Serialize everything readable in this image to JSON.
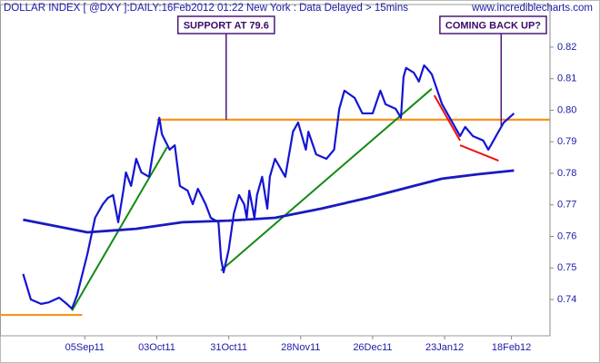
{
  "chart_data": {
    "type": "line",
    "title": "DOLLAR INDEX [ @DXY ]:DAILY:16Feb2012 01:22 New York  : Data Delayed > 15mins",
    "source": "www.incrediblecharts.com",
    "xlim": [
      "2011-08-03",
      "2012-03-04"
    ],
    "xticks": [
      {
        "value": "2011-09-05",
        "label": "05Sep11"
      },
      {
        "value": "2011-10-03",
        "label": "03Oct11"
      },
      {
        "value": "2011-10-31",
        "label": "31Oct11"
      },
      {
        "value": "2011-11-28",
        "label": "28Nov11"
      },
      {
        "value": "2011-12-26",
        "label": "26Dec11"
      },
      {
        "value": "2012-01-23",
        "label": "23Jan12"
      },
      {
        "value": "2012-02-18",
        "label": "18Feb12"
      }
    ],
    "ylim": [
      0.7285,
      0.8335
    ],
    "yticks": [
      0.74,
      0.75,
      0.76,
      0.77,
      0.78,
      0.79,
      {
        "value": 0.8,
        "label": "0.80"
      },
      0.81,
      0.82
    ],
    "grid": false,
    "series": [
      {
        "color": "#1414d4",
        "width": 2.2,
        "x": [
          "2011-08-12",
          "2011-08-15",
          "2011-08-19",
          "2011-08-22",
          "2011-08-26",
          "2011-08-29",
          "2011-08-31",
          "2011-09-02",
          "2011-09-06",
          "2011-09-09",
          "2011-09-12",
          "2011-09-14",
          "2011-09-16",
          "2011-09-18",
          "2011-09-20",
          "2011-09-21",
          "2011-09-23",
          "2011-09-25",
          "2011-09-27",
          "2011-09-30",
          "2011-10-02",
          "2011-10-04",
          "2011-10-05",
          "2011-10-08",
          "2011-10-10",
          "2011-10-12",
          "2011-10-15",
          "2011-10-17",
          "2011-10-19",
          "2011-10-22",
          "2011-10-24",
          "2011-10-27",
          "2011-10-28",
          "2011-10-29",
          "2011-10-31",
          "2011-11-02",
          "2011-11-04",
          "2011-11-06",
          "2011-11-07",
          "2011-11-08",
          "2011-11-10",
          "2011-11-11",
          "2011-11-13",
          "2011-11-15",
          "2011-11-16",
          "2011-11-18",
          "2011-11-22",
          "2011-11-25",
          "2011-11-27",
          "2011-11-30",
          "2011-12-01",
          "2011-12-04",
          "2011-12-08",
          "2011-12-11",
          "2011-12-13",
          "2011-12-15",
          "2011-12-19",
          "2011-12-22",
          "2011-12-26",
          "2011-12-29",
          "2011-12-31",
          "2012-01-04",
          "2012-01-06",
          "2012-01-07",
          "2012-01-08",
          "2012-01-11",
          "2012-01-13",
          "2012-01-15",
          "2012-01-16",
          "2012-01-18",
          "2012-01-22",
          "2012-01-25",
          "2012-01-29",
          "2012-01-31",
          "2012-02-03",
          "2012-02-07",
          "2012-02-09",
          "2012-02-10",
          "2012-02-12",
          "2012-02-15",
          "2012-02-19"
        ],
        "values": [
          0.7481,
          0.74,
          0.7386,
          0.7391,
          0.7406,
          0.7386,
          0.7371,
          0.7414,
          0.7544,
          0.7659,
          0.7702,
          0.7722,
          0.7731,
          0.7645,
          0.7745,
          0.7803,
          0.776,
          0.7846,
          0.7803,
          0.7789,
          0.7889,
          0.7976,
          0.7924,
          0.7875,
          0.7889,
          0.776,
          0.7745,
          0.7702,
          0.7751,
          0.7702,
          0.7659,
          0.7645,
          0.7529,
          0.7486,
          0.7558,
          0.7673,
          0.7731,
          0.7702,
          0.7659,
          0.7745,
          0.7659,
          0.7731,
          0.7789,
          0.7688,
          0.7789,
          0.7846,
          0.7789,
          0.7932,
          0.7961,
          0.7875,
          0.7932,
          0.786,
          0.7846,
          0.7875,
          0.8004,
          0.8062,
          0.8039,
          0.799,
          0.799,
          0.8062,
          0.8019,
          0.8004,
          0.7976,
          0.8105,
          0.8134,
          0.8119,
          0.8091,
          0.8142,
          0.8134,
          0.8114,
          0.8019,
          0.7976,
          0.7918,
          0.7947,
          0.7918,
          0.7904,
          0.7875,
          0.7889,
          0.7918,
          0.7961,
          0.799
        ]
      },
      {
        "color": "#1a1ac0",
        "width": 2.8,
        "x": [
          "2011-08-12",
          "2011-09-06",
          "2011-09-25",
          "2011-10-13",
          "2011-10-31",
          "2011-11-18",
          "2011-12-06",
          "2011-12-24",
          "2012-01-11",
          "2012-01-22",
          "2012-02-05",
          "2012-02-19"
        ],
        "values": [
          0.7653,
          0.7613,
          0.7624,
          0.7645,
          0.765,
          0.7659,
          0.7688,
          0.7722,
          0.776,
          0.7783,
          0.7797,
          0.7809
        ]
      }
    ],
    "hlines": [
      {
        "color": "#f7941d",
        "value": 0.797,
        "x": [
          "2011-10-03",
          "2012-03-04"
        ]
      },
      {
        "color": "#f7941d",
        "value": 0.7351,
        "x": [
          "2011-08-03",
          "2011-09-04"
        ]
      }
    ],
    "trendlines": [
      {
        "color": "#138a13",
        "x": [
          "2011-08-31",
          "2011-10-07"
        ],
        "values": [
          0.7365,
          0.7883
        ]
      },
      {
        "color": "#138a13",
        "x": [
          "2011-10-28",
          "2012-01-18"
        ],
        "values": [
          0.7492,
          0.8068
        ]
      },
      {
        "color": "#ee1111",
        "x": [
          "2012-01-19",
          "2012-01-29"
        ],
        "values": [
          0.8047,
          0.7904
        ]
      },
      {
        "color": "#ee1111",
        "x": [
          "2012-01-29",
          "2012-02-13"
        ],
        "values": [
          0.7889,
          0.784
        ]
      }
    ],
    "notes": [
      {
        "text": "SUPPORT AT 79.6",
        "x": "2011-10-30",
        "y": 0.797
      },
      {
        "text": "COMING BACK UP?",
        "x": "2012-02-14",
        "y": 0.7947
      }
    ]
  }
}
